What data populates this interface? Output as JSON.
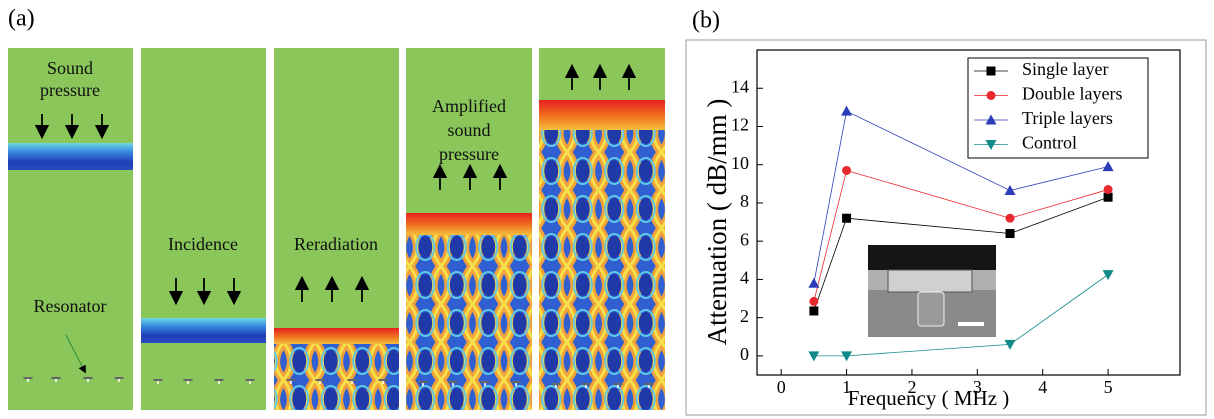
{
  "panel_a": {
    "label": "(a)",
    "texts": [
      {
        "lines": [
          "Sound",
          "pressure"
        ]
      },
      {
        "lines": [
          "Resonator"
        ]
      },
      {
        "lines": [
          "Incidence"
        ]
      },
      {
        "lines": [
          "Reradiation"
        ]
      },
      {
        "lines": [
          "Amplified",
          "sound",
          "pressure"
        ]
      }
    ]
  },
  "chart_data": {
    "type": "line",
    "panel_label": "(b)",
    "x_label": "Frequency ( MHz )",
    "y_label": "Attenuation ( dB/mm )",
    "x": [
      0.5,
      1,
      3.5,
      5
    ],
    "series": [
      {
        "name": "Single layer",
        "color": "#000000",
        "marker": "square",
        "values": [
          2.35,
          7.2,
          6.4,
          8.3
        ]
      },
      {
        "name": "Double layers",
        "color": "#e8282d",
        "marker": "circle",
        "values": [
          2.85,
          9.7,
          7.2,
          8.7
        ]
      },
      {
        "name": "Triple layers",
        "color": "#2b3db8",
        "marker": "triangle-up",
        "values": [
          3.8,
          12.8,
          8.65,
          9.9
        ]
      },
      {
        "name": "Control",
        "color": "#138a8a",
        "marker": "triangle-down",
        "values": [
          0,
          0,
          0.6,
          4.25
        ]
      }
    ],
    "xlim": [
      -0.37,
      6.1
    ],
    "ylim": [
      -1,
      16
    ],
    "xticks": [
      0,
      1,
      2,
      3,
      4,
      5
    ],
    "yticks": [
      0,
      2,
      4,
      6,
      8,
      10,
      12,
      14
    ],
    "legend": "upper-right"
  }
}
